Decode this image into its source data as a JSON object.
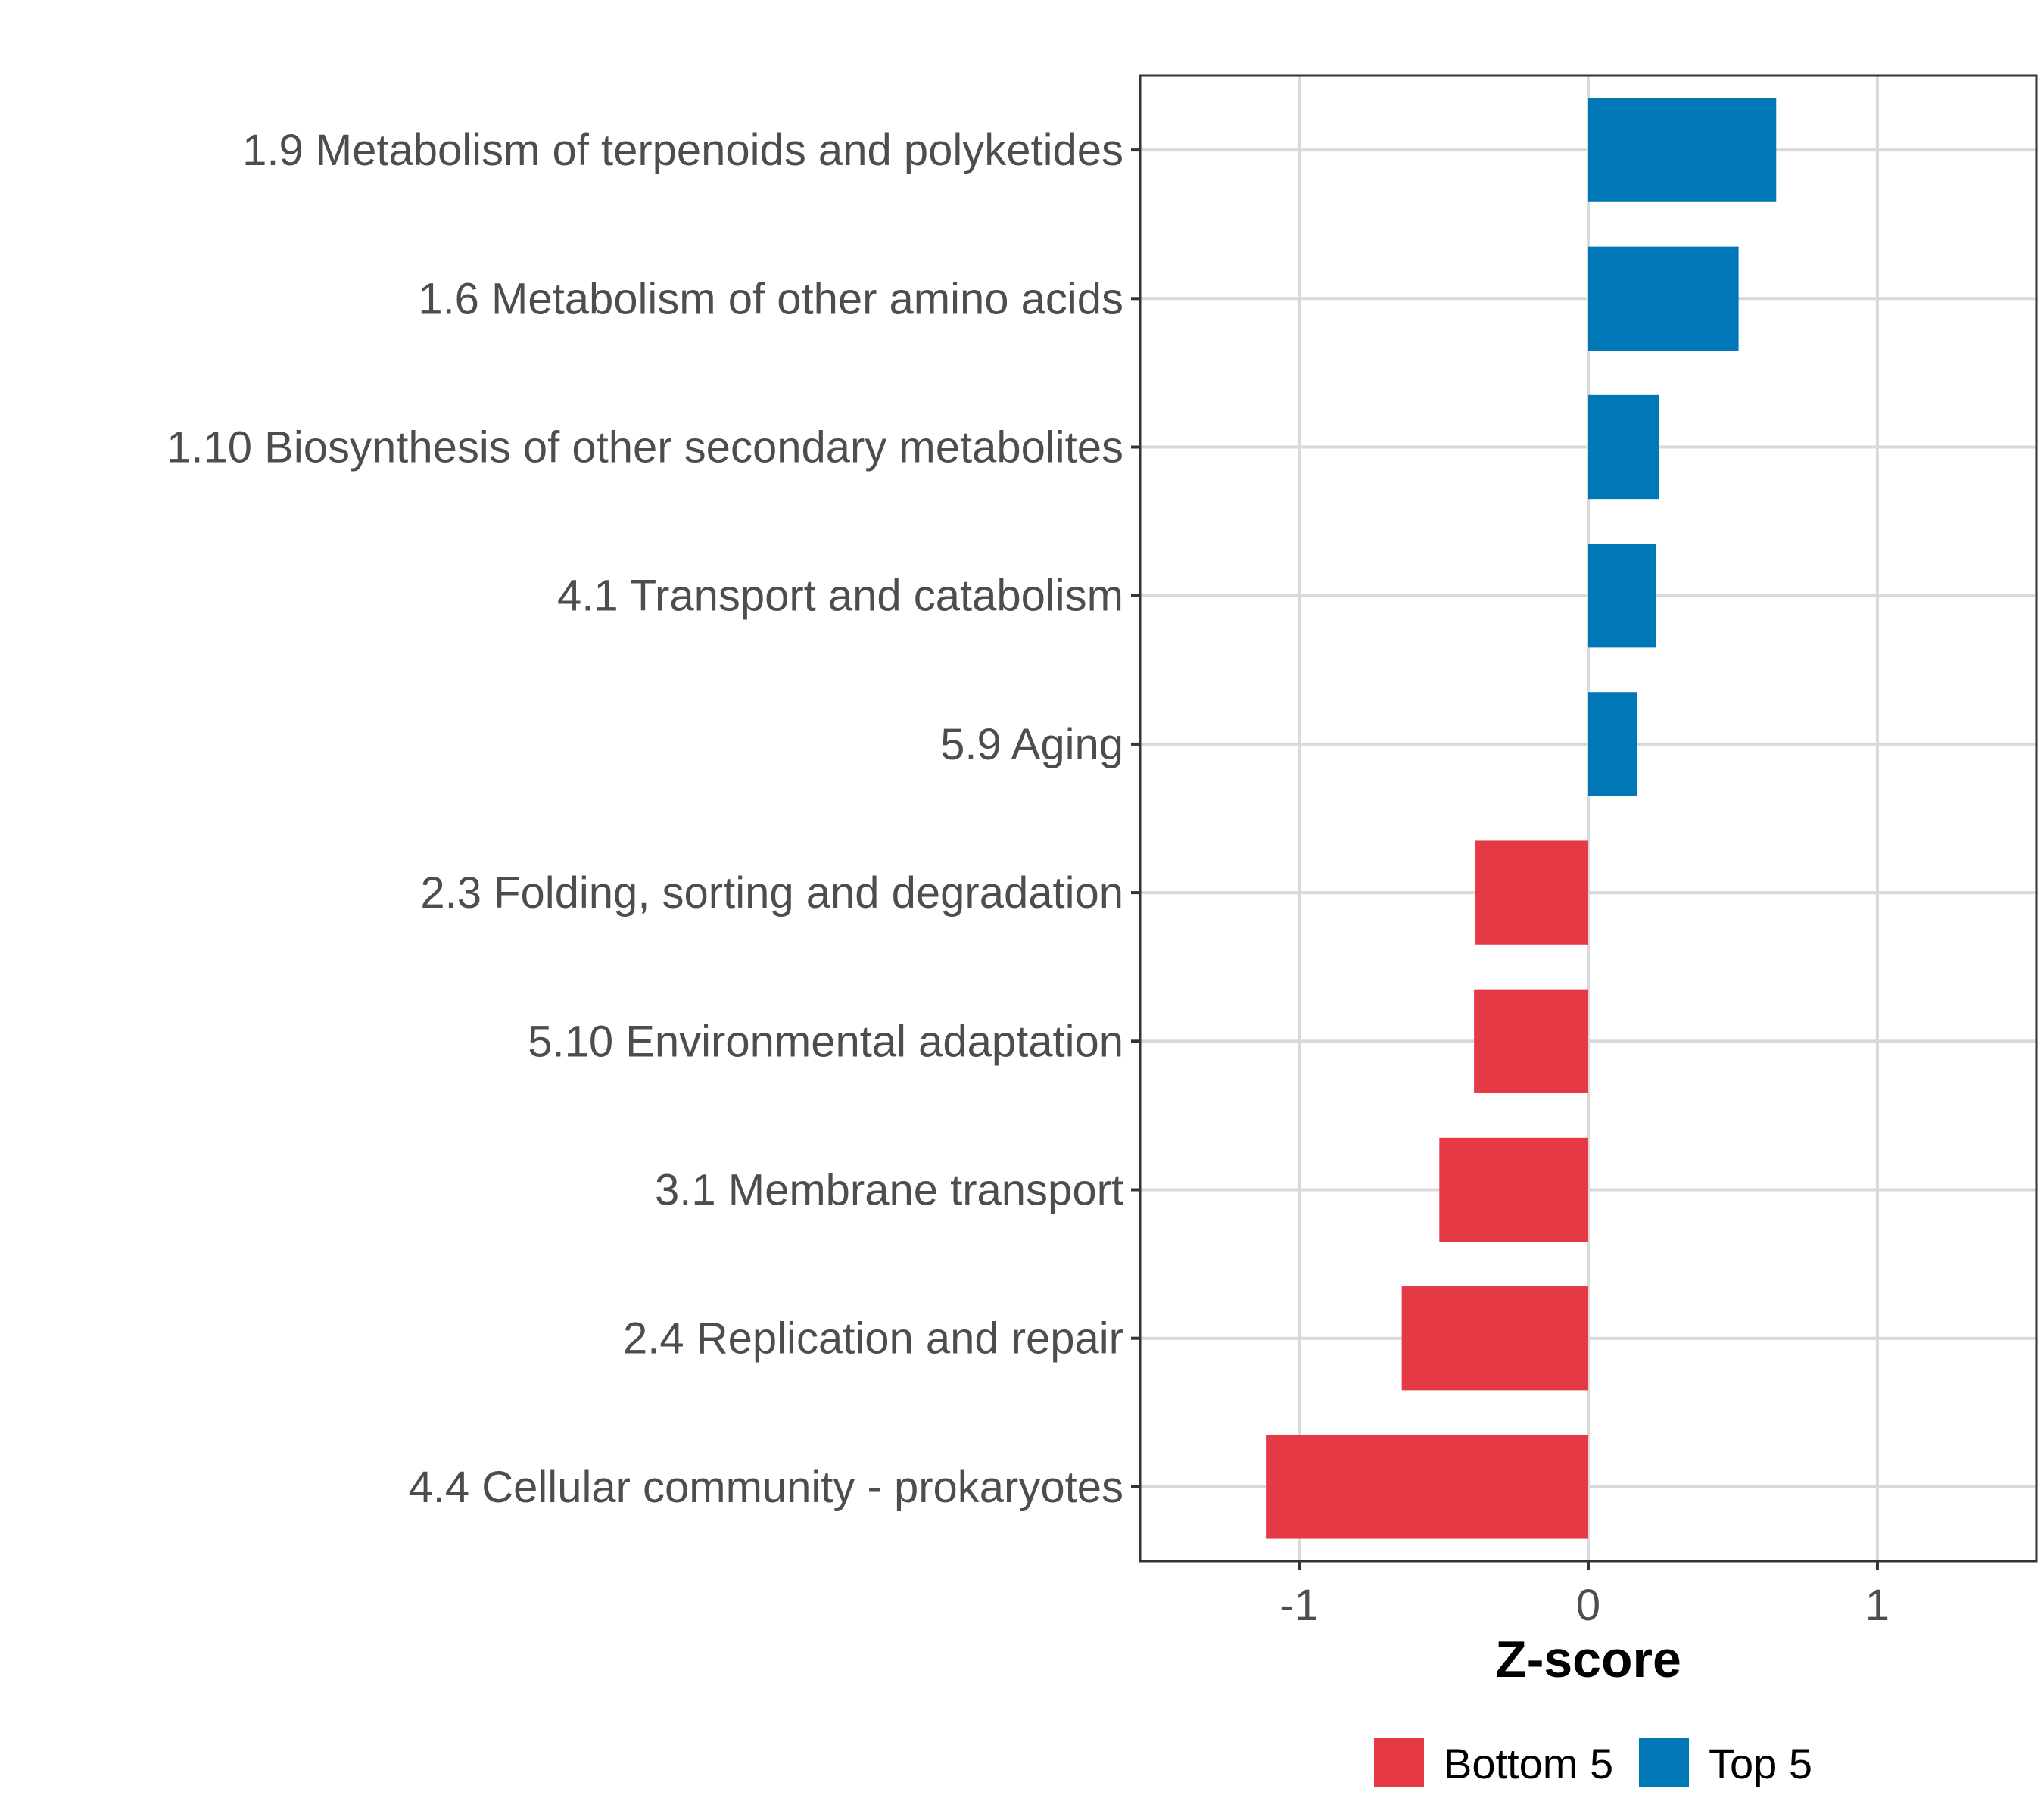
{
  "chart_data": {
    "type": "bar",
    "orientation": "horizontal",
    "title": "",
    "xlabel": "Z-score",
    "ylabel": "",
    "xlim": [
      -1.55,
      1.55
    ],
    "xticks": [
      -1,
      0,
      1
    ],
    "xtick_labels": [
      "-1",
      "0",
      "1"
    ],
    "grid": true,
    "categories": [
      "1.9 Metabolism of terpenoids and polyketides",
      "1.6 Metabolism of other amino acids",
      "1.10 Biosynthesis of other secondary metabolites",
      "4.1 Transport and catabolism",
      "5.9 Aging",
      "2.3 Folding, sorting and degradation",
      "5.10 Environmental adaptation",
      "3.1 Membrane transport",
      "2.4 Replication and repair",
      "4.4 Cellular community - prokaryotes"
    ],
    "values": [
      0.65,
      0.52,
      0.245,
      0.235,
      0.17,
      -0.39,
      -0.395,
      -0.515,
      -0.645,
      -1.115
    ],
    "groups": [
      "Top 5",
      "Top 5",
      "Top 5",
      "Top 5",
      "Top 5",
      "Bottom 5",
      "Bottom 5",
      "Bottom 5",
      "Bottom 5",
      "Bottom 5"
    ],
    "legend": [
      {
        "label": "Bottom 5",
        "color": "#e63946"
      },
      {
        "label": "Top 5",
        "color": "#0077b6"
      }
    ],
    "legend_position": "bottom"
  }
}
